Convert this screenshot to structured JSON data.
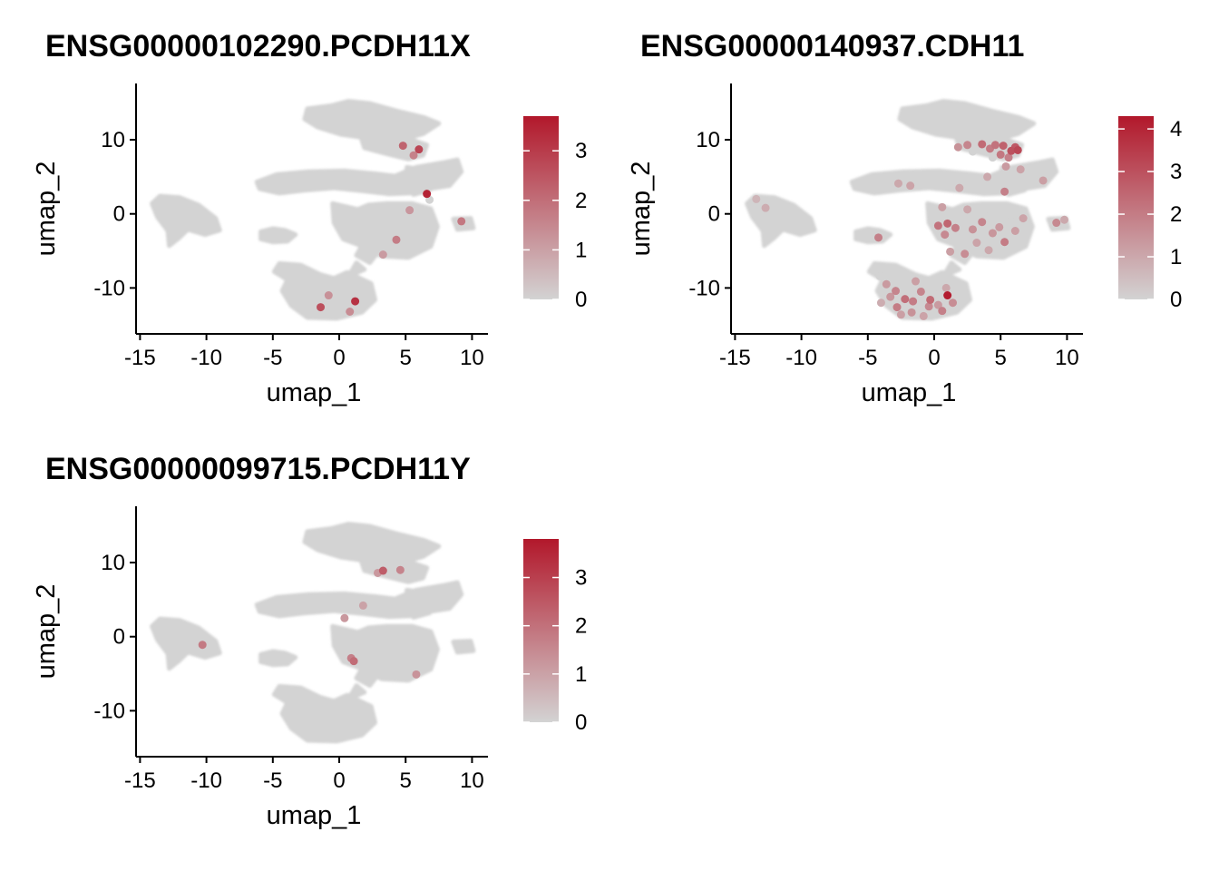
{
  "colors": {
    "low": "#d3d3d3",
    "high": "#b2182b",
    "background": "#ffffff",
    "axis": "#000000"
  },
  "chart_data": [
    {
      "type": "scatter",
      "title": "ENSG00000102290.PCDH11X",
      "xlabel": "umap_1",
      "ylabel": "umap_2",
      "xlim": [
        -15.3,
        11.2
      ],
      "ylim": [
        -16.2,
        17.6
      ],
      "xticks": [
        -15,
        -10,
        -5,
        0,
        5,
        10
      ],
      "xtick_labels": [
        "-15",
        "-10",
        "-5",
        "0",
        "5",
        "10"
      ],
      "yticks": [
        -10,
        0,
        10
      ],
      "ytick_labels": [
        "-10",
        "0",
        "10"
      ],
      "color_scale": {
        "min": 0,
        "max": 3.7,
        "ticks": [
          0,
          1,
          2,
          3
        ],
        "tick_labels": [
          "0",
          "1",
          "2",
          "3"
        ]
      },
      "expressing_cells": [
        {
          "x": 6.0,
          "y": 8.7,
          "v": 2.8
        },
        {
          "x": 4.8,
          "y": 9.2,
          "v": 2.2
        },
        {
          "x": 5.6,
          "y": 7.9,
          "v": 1.6
        },
        {
          "x": 6.6,
          "y": 2.7,
          "v": 3.5
        },
        {
          "x": 9.2,
          "y": -1.0,
          "v": 1.8
        },
        {
          "x": 1.2,
          "y": -11.8,
          "v": 3.2
        },
        {
          "x": -1.4,
          "y": -12.6,
          "v": 2.6
        },
        {
          "x": 0.8,
          "y": -13.2,
          "v": 1.4
        },
        {
          "x": 4.3,
          "y": -3.5,
          "v": 1.7
        },
        {
          "x": 5.3,
          "y": 0.5,
          "v": 1.2
        },
        {
          "x": 3.3,
          "y": -5.5,
          "v": 1.1
        },
        {
          "x": -0.8,
          "y": -11.0,
          "v": 1.3
        }
      ],
      "grey_cells": [
        {
          "x": 6.8,
          "y": 1.9,
          "v": 0
        },
        {
          "x": 9.4,
          "y": -1.2,
          "v": 0
        }
      ]
    },
    {
      "type": "scatter",
      "title": "ENSG00000140937.CDH11",
      "xlabel": "umap_1",
      "ylabel": "umap_2",
      "xlim": [
        -15.3,
        11.2
      ],
      "ylim": [
        -16.2,
        17.6
      ],
      "xticks": [
        -15,
        -10,
        -5,
        0,
        5,
        10
      ],
      "xtick_labels": [
        "-15",
        "-10",
        "-5",
        "0",
        "5",
        "10"
      ],
      "yticks": [
        -10,
        0,
        10
      ],
      "ytick_labels": [
        "-10",
        "0",
        "10"
      ],
      "color_scale": {
        "min": 0,
        "max": 4.3,
        "ticks": [
          0,
          1,
          2,
          3,
          4
        ],
        "tick_labels": [
          "0",
          "1",
          "2",
          "3",
          "4"
        ]
      },
      "expressing_cells": [
        {
          "x": 5.8,
          "y": 8.5,
          "v": 3.0
        },
        {
          "x": 6.3,
          "y": 8.6,
          "v": 3.2
        },
        {
          "x": 5.2,
          "y": 9.2,
          "v": 2.6
        },
        {
          "x": 4.6,
          "y": 9.3,
          "v": 2.2
        },
        {
          "x": 4.2,
          "y": 8.8,
          "v": 2.0
        },
        {
          "x": 3.6,
          "y": 9.4,
          "v": 2.4
        },
        {
          "x": 2.5,
          "y": 9.3,
          "v": 1.8
        },
        {
          "x": 1.8,
          "y": 9.0,
          "v": 1.5
        },
        {
          "x": 5.0,
          "y": 8.0,
          "v": 2.1
        },
        {
          "x": 5.6,
          "y": 7.6,
          "v": 1.9
        },
        {
          "x": 6.1,
          "y": 9.0,
          "v": 2.8
        },
        {
          "x": 5.4,
          "y": 6.4,
          "v": 1.3
        },
        {
          "x": 6.5,
          "y": 6.0,
          "v": 1.1
        },
        {
          "x": 5.3,
          "y": 3.0,
          "v": 1.9
        },
        {
          "x": 8.2,
          "y": 4.5,
          "v": 1.2
        },
        {
          "x": 4.0,
          "y": 5.0,
          "v": 1.0
        },
        {
          "x": 9.2,
          "y": -1.2,
          "v": 1.7
        },
        {
          "x": 9.8,
          "y": -0.8,
          "v": 1.0
        },
        {
          "x": -4.2,
          "y": -3.2,
          "v": 1.9
        },
        {
          "x": -12.7,
          "y": 0.8,
          "v": 0.9
        },
        {
          "x": -13.4,
          "y": 2.0,
          "v": 0.7
        },
        {
          "x": -1.8,
          "y": 3.8,
          "v": 1.1
        },
        {
          "x": -2.7,
          "y": 4.1,
          "v": 1.0
        },
        {
          "x": 1.9,
          "y": 3.5,
          "v": 1.0
        },
        {
          "x": 0.3,
          "y": -1.6,
          "v": 2.2
        },
        {
          "x": 1.0,
          "y": -1.3,
          "v": 2.5
        },
        {
          "x": 1.6,
          "y": -1.9,
          "v": 1.9
        },
        {
          "x": 0.8,
          "y": -2.8,
          "v": 1.7
        },
        {
          "x": 2.9,
          "y": -2.1,
          "v": 1.5
        },
        {
          "x": 3.6,
          "y": -1.1,
          "v": 1.8
        },
        {
          "x": 4.4,
          "y": -2.6,
          "v": 1.4
        },
        {
          "x": 5.3,
          "y": -3.8,
          "v": 2.0
        },
        {
          "x": 4.9,
          "y": -1.8,
          "v": 1.3
        },
        {
          "x": 6.1,
          "y": -2.3,
          "v": 1.2
        },
        {
          "x": 3.2,
          "y": -3.9,
          "v": 1.1
        },
        {
          "x": 2.3,
          "y": -5.4,
          "v": 1.6
        },
        {
          "x": 1.2,
          "y": -5.1,
          "v": 1.2
        },
        {
          "x": 4.1,
          "y": -4.9,
          "v": 1.0
        },
        {
          "x": 6.7,
          "y": -0.6,
          "v": 1.1
        },
        {
          "x": 2.5,
          "y": 0.6,
          "v": 1.0
        },
        {
          "x": 0.6,
          "y": 0.9,
          "v": 1.2
        },
        {
          "x": 1.0,
          "y": -11.0,
          "v": 4.2
        },
        {
          "x": -1.0,
          "y": -10.5,
          "v": 1.8
        },
        {
          "x": -2.2,
          "y": -11.5,
          "v": 2.3
        },
        {
          "x": -2.8,
          "y": -12.6,
          "v": 2.0
        },
        {
          "x": -0.4,
          "y": -12.5,
          "v": 1.7
        },
        {
          "x": 0.6,
          "y": -13.1,
          "v": 1.9
        },
        {
          "x": -1.7,
          "y": -13.3,
          "v": 1.5
        },
        {
          "x": -3.3,
          "y": -11.2,
          "v": 1.4
        },
        {
          "x": -1.4,
          "y": -9.1,
          "v": 1.2
        },
        {
          "x": -3.6,
          "y": -9.5,
          "v": 1.3
        },
        {
          "x": 1.4,
          "y": -12.0,
          "v": 1.6
        },
        {
          "x": -0.3,
          "y": -11.6,
          "v": 2.4
        },
        {
          "x": -2.5,
          "y": -13.6,
          "v": 1.2
        },
        {
          "x": -0.8,
          "y": -13.8,
          "v": 1.1
        },
        {
          "x": 0.9,
          "y": -10.0,
          "v": 1.0
        },
        {
          "x": -2.9,
          "y": -10.4,
          "v": 1.8
        },
        {
          "x": -4.0,
          "y": -12.0,
          "v": 0.9
        },
        {
          "x": 0.3,
          "y": -12.3,
          "v": 1.3
        },
        {
          "x": -1.6,
          "y": -11.8,
          "v": 2.0
        }
      ],
      "grey_cells": [
        {
          "x": -4.1,
          "y": -8.4,
          "v": 0
        },
        {
          "x": -2.3,
          "y": -12.4,
          "v": 0
        },
        {
          "x": -1.1,
          "y": -13.0,
          "v": 0
        },
        {
          "x": 0.4,
          "y": -10.8,
          "v": 0
        },
        {
          "x": 1.6,
          "y": -3.0,
          "v": 0
        },
        {
          "x": 3.9,
          "y": -0.4,
          "v": 0
        },
        {
          "x": 5.8,
          "y": -1.0,
          "v": 0
        },
        {
          "x": 9.0,
          "y": -1.6,
          "v": 0
        },
        {
          "x": -12.2,
          "y": -0.2,
          "v": 0
        },
        {
          "x": 2.9,
          "y": 8.4,
          "v": 0
        },
        {
          "x": 4.4,
          "y": 7.6,
          "v": 0
        }
      ]
    },
    {
      "type": "scatter",
      "title": "ENSG00000099715.PCDH11Y",
      "xlabel": "umap_1",
      "ylabel": "umap_2",
      "xlim": [
        -15.3,
        11.2
      ],
      "ylim": [
        -16.2,
        17.6
      ],
      "xticks": [
        -15,
        -10,
        -5,
        0,
        5,
        10
      ],
      "xtick_labels": [
        "-15",
        "-10",
        "-5",
        "0",
        "5",
        "10"
      ],
      "yticks": [
        -10,
        0,
        10
      ],
      "ytick_labels": [
        "-10",
        "0",
        "10"
      ],
      "color_scale": {
        "min": 0,
        "max": 3.8,
        "ticks": [
          0,
          1,
          2,
          3
        ],
        "tick_labels": [
          "0",
          "1",
          "2",
          "3"
        ]
      },
      "expressing_cells": [
        {
          "x": -10.3,
          "y": -1.1,
          "v": 1.8
        },
        {
          "x": 3.3,
          "y": 8.9,
          "v": 2.4
        },
        {
          "x": 4.6,
          "y": 9.0,
          "v": 1.6
        },
        {
          "x": 2.9,
          "y": 8.6,
          "v": 1.2
        },
        {
          "x": 1.1,
          "y": -3.3,
          "v": 2.1
        },
        {
          "x": 0.9,
          "y": -2.9,
          "v": 1.7
        },
        {
          "x": 5.8,
          "y": -5.1,
          "v": 1.3
        },
        {
          "x": 0.4,
          "y": 2.5,
          "v": 1.2
        },
        {
          "x": 1.8,
          "y": 4.2,
          "v": 1.0
        }
      ],
      "grey_cells": []
    }
  ]
}
